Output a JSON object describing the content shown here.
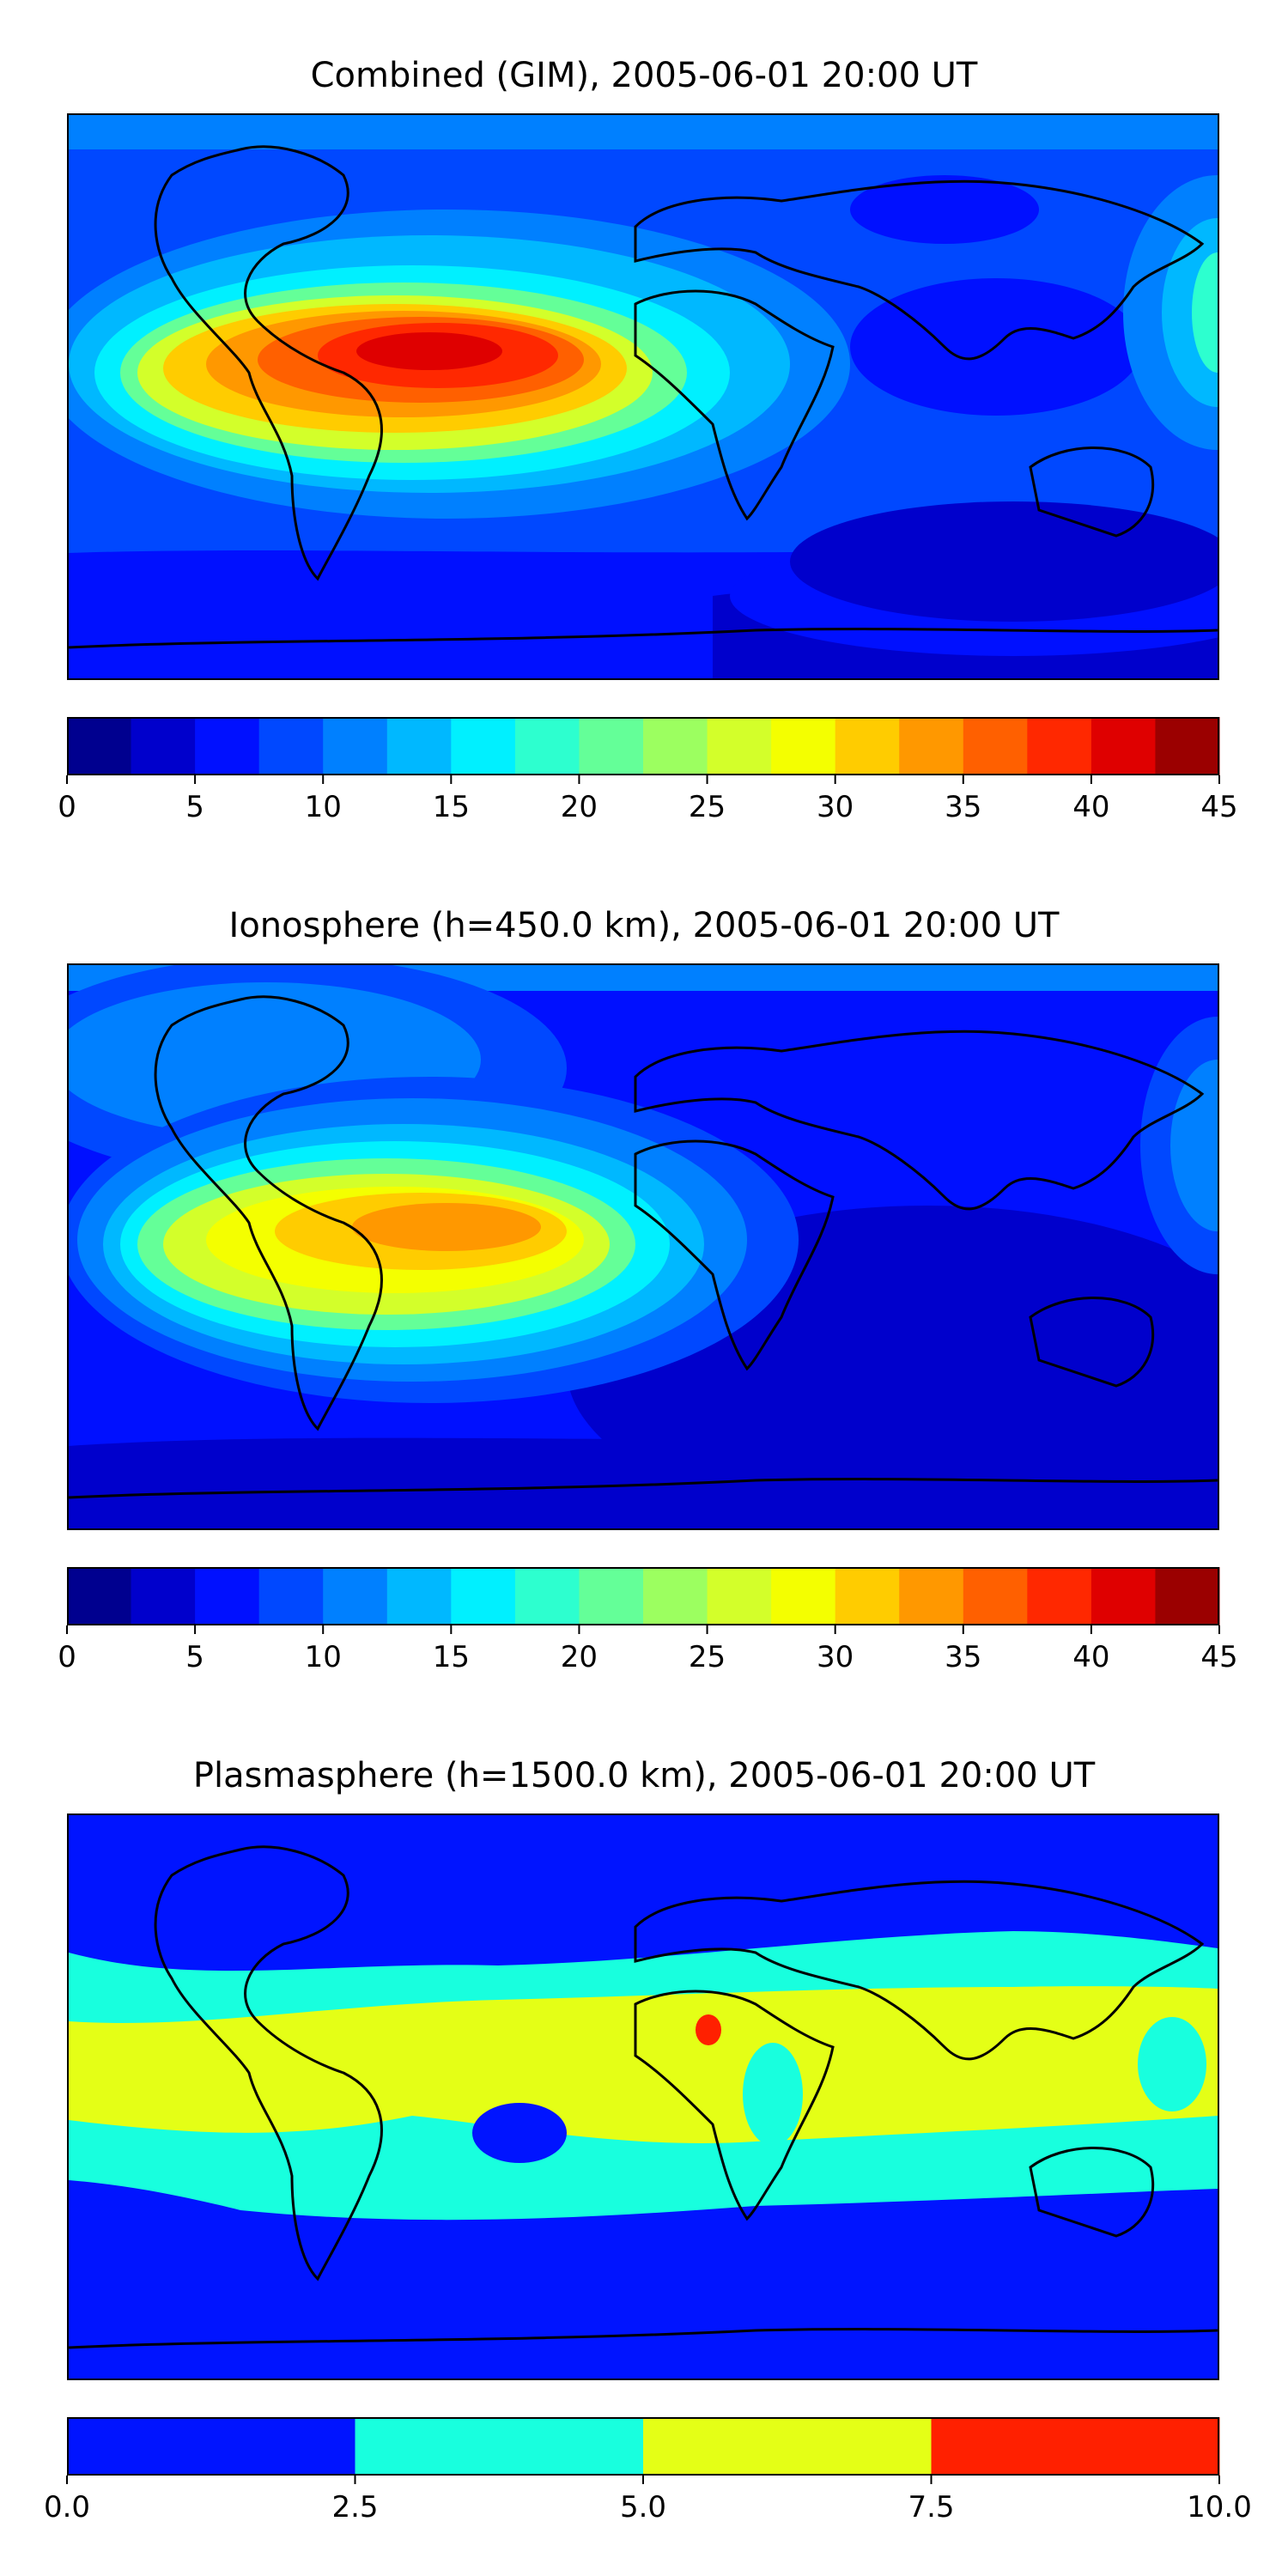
{
  "panels": [
    {
      "title": "Combined (GIM), 2005-06-01 20:00 UT",
      "colorbar": {
        "ticks": [
          "0",
          "5",
          "10",
          "15",
          "20",
          "25",
          "30",
          "35",
          "40",
          "45"
        ],
        "levels": [
          0,
          2.5,
          5,
          7.5,
          10,
          12.5,
          15,
          17.5,
          20,
          22.5,
          25,
          27.5,
          30,
          32.5,
          35,
          37.5,
          40,
          42.5,
          45
        ],
        "colors": [
          "#00008f",
          "#0000cc",
          "#0010ff",
          "#0048ff",
          "#0080ff",
          "#00b8ff",
          "#00f0ff",
          "#2dffcf",
          "#64ff98",
          "#9cff60",
          "#d3ff2a",
          "#f4ff00",
          "#ffcc00",
          "#ff9800",
          "#ff6000",
          "#ff2800",
          "#df0000",
          "#9b0000"
        ]
      }
    },
    {
      "title": "Ionosphere  (h=450.0 km), 2005-06-01 20:00 UT",
      "colorbar": {
        "ticks": [
          "0",
          "5",
          "10",
          "15",
          "20",
          "25",
          "30",
          "35",
          "40",
          "45"
        ],
        "levels": [
          0,
          2.5,
          5,
          7.5,
          10,
          12.5,
          15,
          17.5,
          20,
          22.5,
          25,
          27.5,
          30,
          32.5,
          35,
          37.5,
          40,
          42.5,
          45
        ],
        "colors": [
          "#00008f",
          "#0000cc",
          "#0010ff",
          "#0048ff",
          "#0080ff",
          "#00b8ff",
          "#00f0ff",
          "#2dffcf",
          "#64ff98",
          "#9cff60",
          "#d3ff2a",
          "#f4ff00",
          "#ffcc00",
          "#ff9800",
          "#ff6000",
          "#ff2800",
          "#df0000",
          "#9b0000"
        ]
      }
    },
    {
      "title": "Plasmasphere (h=1500.0 km), 2005-06-01 20:00 UT",
      "colorbar": {
        "ticks": [
          "0.0",
          "2.5",
          "5.0",
          "7.5",
          "10.0"
        ],
        "levels": [
          0,
          2.5,
          5,
          7.5,
          10
        ],
        "colors": [
          "#0014ff",
          "#18ffde",
          "#e4ff16",
          "#ff2000"
        ]
      }
    }
  ],
  "chart_data": [
    {
      "type": "heatmap",
      "title": "Combined (GIM), 2005-06-01 20:00 UT",
      "field": "vertical TEC map over world map (cylindrical projection)",
      "x_range_lon": [
        -180,
        180
      ],
      "y_range_lat": [
        -90,
        90
      ],
      "color_range": [
        0,
        45
      ],
      "contour_levels": [
        0,
        2.5,
        5,
        7.5,
        10,
        12.5,
        15,
        17.5,
        20,
        22.5,
        25,
        27.5,
        30,
        32.5,
        35,
        37.5,
        40,
        42.5,
        45
      ],
      "features": [
        {
          "region": "northern South America / Caribbean",
          "lon": -60,
          "lat": 8,
          "value": 40
        },
        {
          "region": "eastern Pacific",
          "lon": -120,
          "lat": 5,
          "value": 30
        },
        {
          "region": "North Atlantic",
          "lon": -30,
          "lat": 35,
          "value": 15
        },
        {
          "region": "Asia",
          "lon": 90,
          "lat": 45,
          "value": 5
        },
        {
          "region": "southern Indian Ocean",
          "lon": 90,
          "lat": -40,
          "value": 2.5
        },
        {
          "region": "western Pacific",
          "lon": 175,
          "lat": 10,
          "value": 17.5
        }
      ]
    },
    {
      "type": "heatmap",
      "title": "Ionosphere  (h=450.0 km), 2005-06-01 20:00 UT",
      "field": "ionospheric TEC map over world map",
      "x_range_lon": [
        -180,
        180
      ],
      "y_range_lat": [
        -90,
        90
      ],
      "color_range": [
        0,
        45
      ],
      "contour_levels": [
        0,
        2.5,
        5,
        7.5,
        10,
        12.5,
        15,
        17.5,
        20,
        22.5,
        25,
        27.5,
        30,
        32.5,
        35,
        37.5,
        40,
        42.5,
        45
      ],
      "features": [
        {
          "region": "northern South America",
          "lon": -60,
          "lat": 5,
          "value": 35
        },
        {
          "region": "eastern Pacific",
          "lon": -120,
          "lat": 0,
          "value": 27.5
        },
        {
          "region": "North America",
          "lon": -100,
          "lat": 50,
          "value": 12.5
        },
        {
          "region": "Indian Ocean",
          "lon": 80,
          "lat": -20,
          "value": 2.5
        },
        {
          "region": "western Pacific",
          "lon": 175,
          "lat": 5,
          "value": 12.5
        }
      ]
    },
    {
      "type": "heatmap",
      "title": "Plasmasphere (h=1500.0 km), 2005-06-01 20:00 UT",
      "field": "plasmaspheric TEC map over world map",
      "x_range_lon": [
        -180,
        180
      ],
      "y_range_lat": [
        -90,
        90
      ],
      "color_range": [
        0,
        10
      ],
      "contour_levels": [
        0,
        2.5,
        5,
        7.5,
        10
      ],
      "features": [
        {
          "region": "low-latitude band",
          "lat_range": [
            -10,
            20
          ],
          "value": 5
        },
        {
          "region": "mid-latitude bands",
          "lat_range": [
            -30,
            35
          ],
          "value": 2.5
        },
        {
          "region": "high latitudes",
          "value": 0
        },
        {
          "region": "central Africa",
          "lon": 15,
          "lat": 15,
          "value": 7.5
        },
        {
          "region": "central Brazil",
          "lon": -45,
          "lat": -15,
          "value": 0
        }
      ]
    }
  ]
}
